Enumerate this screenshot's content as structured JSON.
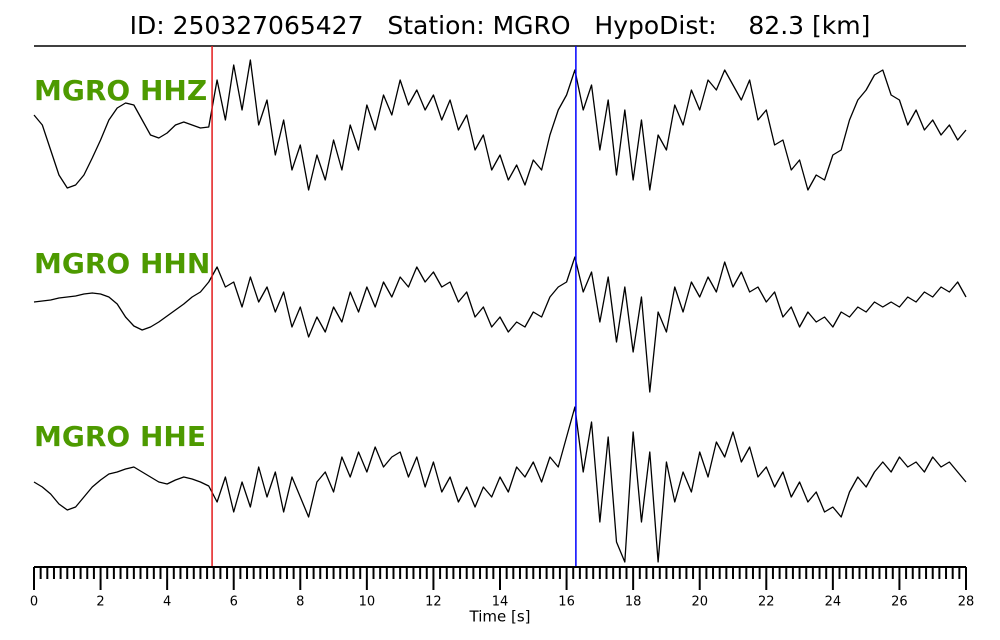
{
  "chart_data": {
    "type": "seismogram",
    "title": "ID: 250327065427   Station: MGRO   HypoDist:    82.3 [km]",
    "xlabel": "Time [s]",
    "xlim": [
      0,
      28
    ],
    "xticks": [
      0,
      2,
      4,
      6,
      8,
      10,
      12,
      14,
      16,
      18,
      20,
      22,
      24,
      26,
      28
    ],
    "minor_ticks_per_major": 10,
    "label_color": "#4d9a00",
    "line_color": "#000000",
    "markers": [
      {
        "x": 5.35,
        "color": "#e41a1c"
      },
      {
        "x": 16.28,
        "color": "#0000ff"
      }
    ],
    "x": [
      0,
      0.25,
      0.5,
      0.75,
      1,
      1.25,
      1.5,
      1.75,
      2,
      2.25,
      2.5,
      2.75,
      3,
      3.25,
      3.5,
      3.75,
      4,
      4.25,
      4.5,
      4.75,
      5,
      5.25,
      5.5,
      5.75,
      6,
      6.25,
      6.5,
      6.75,
      7,
      7.25,
      7.5,
      7.75,
      8,
      8.25,
      8.5,
      8.75,
      9,
      9.25,
      9.5,
      9.75,
      10,
      10.25,
      10.5,
      10.75,
      11,
      11.25,
      11.5,
      11.75,
      12,
      12.25,
      12.5,
      12.75,
      13,
      13.25,
      13.5,
      13.75,
      14,
      14.25,
      14.5,
      14.75,
      15,
      15.25,
      15.5,
      15.75,
      16,
      16.25,
      16.5,
      16.75,
      17,
      17.25,
      17.5,
      17.75,
      18,
      18.25,
      18.5,
      18.75,
      19,
      19.25,
      19.5,
      19.75,
      20,
      20.25,
      20.5,
      20.75,
      21,
      21.25,
      21.5,
      21.75,
      22,
      22.25,
      22.5,
      22.75,
      23,
      23.25,
      23.5,
      23.75,
      24,
      24.25,
      24.5,
      24.75,
      25,
      25.25,
      25.5,
      25.75,
      26,
      26.25,
      26.5,
      26.75,
      27,
      27.25,
      27.5,
      27.75,
      28
    ],
    "series": [
      {
        "name": "MGRO HHZ",
        "values": [
          15,
          5,
          -20,
          -45,
          -58,
          -55,
          -45,
          -28,
          -10,
          10,
          22,
          27,
          25,
          10,
          -5,
          -8,
          -3,
          5,
          8,
          5,
          2,
          3,
          50,
          10,
          65,
          20,
          70,
          5,
          30,
          -25,
          10,
          -40,
          -15,
          -60,
          -25,
          -50,
          -10,
          -40,
          5,
          -20,
          25,
          0,
          35,
          15,
          50,
          25,
          40,
          20,
          35,
          10,
          30,
          0,
          15,
          -20,
          -5,
          -40,
          -25,
          -50,
          -35,
          -55,
          -30,
          -40,
          -5,
          20,
          35,
          60,
          20,
          45,
          -20,
          30,
          -45,
          20,
          -50,
          10,
          -60,
          -5,
          -20,
          25,
          5,
          40,
          20,
          50,
          40,
          60,
          45,
          30,
          50,
          10,
          20,
          -15,
          -10,
          -40,
          -30,
          -60,
          -45,
          -50,
          -25,
          -20,
          10,
          30,
          40,
          55,
          60,
          35,
          30,
          5,
          20,
          0,
          10,
          -5,
          5,
          -10,
          0
        ]
      },
      {
        "name": "MGRO HHN",
        "values": [
          0,
          1,
          2,
          4,
          5,
          6,
          8,
          9,
          8,
          5,
          -2,
          -15,
          -24,
          -28,
          -25,
          -20,
          -14,
          -8,
          -2,
          5,
          10,
          20,
          35,
          15,
          20,
          -5,
          25,
          0,
          15,
          -10,
          10,
          -25,
          -5,
          -35,
          -15,
          -30,
          -5,
          -20,
          10,
          -10,
          15,
          -5,
          20,
          5,
          25,
          15,
          35,
          20,
          30,
          15,
          20,
          0,
          10,
          -15,
          -5,
          -25,
          -15,
          -30,
          -20,
          -25,
          -10,
          -15,
          5,
          15,
          20,
          45,
          10,
          30,
          -20,
          25,
          -40,
          15,
          -50,
          5,
          -90,
          -10,
          -30,
          15,
          -10,
          20,
          5,
          25,
          10,
          40,
          15,
          30,
          10,
          15,
          0,
          10,
          -15,
          -5,
          -25,
          -10,
          -20,
          -15,
          -25,
          -10,
          -15,
          -5,
          -10,
          0,
          -5,
          0,
          -5,
          5,
          0,
          10,
          5,
          15,
          10,
          20,
          5
        ]
      },
      {
        "name": "MGRO HHE",
        "values": [
          0,
          -5,
          -12,
          -22,
          -28,
          -25,
          -15,
          -5,
          2,
          8,
          10,
          13,
          15,
          10,
          5,
          0,
          -2,
          2,
          5,
          3,
          0,
          -4,
          -20,
          5,
          -30,
          0,
          -25,
          15,
          -15,
          10,
          -30,
          5,
          -15,
          -35,
          0,
          10,
          -10,
          25,
          5,
          30,
          10,
          35,
          15,
          25,
          30,
          5,
          25,
          -5,
          20,
          -10,
          5,
          -20,
          -5,
          -25,
          -5,
          -15,
          5,
          -10,
          15,
          5,
          20,
          0,
          25,
          15,
          45,
          75,
          10,
          60,
          -40,
          45,
          -60,
          -80,
          50,
          -40,
          30,
          -80,
          20,
          -20,
          10,
          -10,
          30,
          5,
          40,
          25,
          50,
          20,
          35,
          5,
          15,
          -5,
          10,
          -15,
          0,
          -20,
          -10,
          -30,
          -25,
          -35,
          -10,
          5,
          -5,
          10,
          20,
          10,
          25,
          15,
          20,
          10,
          25,
          15,
          20,
          10,
          0
        ]
      }
    ]
  }
}
